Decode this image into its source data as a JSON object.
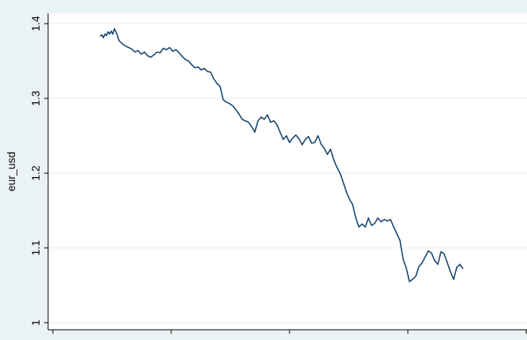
{
  "colors": {
    "background": "#eaf2f3",
    "plot_region": "#ffffff",
    "gridline": "#eaf2f3",
    "series_line": "#1a476f",
    "axis": "#000000"
  },
  "chart_data": {
    "type": "line",
    "title": "",
    "xlabel": "",
    "ylabel": "eur_usd",
    "ylim": [
      1.0,
      1.4
    ],
    "yticks": [
      1,
      1.1,
      1.2,
      1.3,
      1.4
    ],
    "ytick_labels": [
      "1",
      "1.1",
      "1.2",
      "1.3",
      "1.4"
    ],
    "xlim": [
      0,
      600
    ],
    "xticks": [
      0,
      150,
      300,
      450,
      600
    ],
    "xtick_labels": [
      "",
      "",
      "",
      "",
      ""
    ],
    "grid": true,
    "legend": "none",
    "series": [
      {
        "x": [
          60,
          62,
          64,
          66,
          68,
          70,
          72,
          74,
          76,
          78,
          80,
          84,
          88,
          92,
          96,
          100,
          104,
          108,
          112,
          116,
          120,
          124,
          128,
          132,
          136,
          140,
          144,
          148,
          152,
          156,
          160,
          164,
          168,
          172,
          176,
          180,
          184,
          188,
          192,
          196,
          200,
          204,
          208,
          212,
          216,
          220,
          224,
          228,
          232,
          236,
          240,
          244,
          248,
          252,
          256,
          260,
          264,
          268,
          272,
          276,
          280,
          284,
          288,
          292,
          296,
          300,
          304,
          308,
          312,
          316,
          320,
          324,
          328,
          332,
          336,
          340,
          344,
          348,
          352,
          356,
          360,
          364,
          368,
          372,
          376,
          380,
          384,
          388,
          392,
          396,
          400,
          404,
          408,
          412,
          416,
          420,
          424,
          428,
          432,
          436,
          440,
          444,
          448,
          452,
          456,
          460,
          464,
          468,
          472,
          476,
          480,
          484,
          488,
          492,
          496,
          500,
          504,
          508,
          512,
          516,
          520
        ],
        "y": [
          1.383,
          1.385,
          1.381,
          1.386,
          1.384,
          1.389,
          1.386,
          1.39,
          1.386,
          1.393,
          1.389,
          1.377,
          1.373,
          1.37,
          1.368,
          1.366,
          1.362,
          1.364,
          1.359,
          1.362,
          1.357,
          1.355,
          1.358,
          1.362,
          1.361,
          1.367,
          1.365,
          1.368,
          1.363,
          1.365,
          1.361,
          1.356,
          1.352,
          1.35,
          1.345,
          1.341,
          1.342,
          1.338,
          1.34,
          1.336,
          1.335,
          1.326,
          1.32,
          1.316,
          1.298,
          1.295,
          1.293,
          1.29,
          1.285,
          1.279,
          1.272,
          1.27,
          1.268,
          1.262,
          1.255,
          1.27,
          1.275,
          1.272,
          1.278,
          1.268,
          1.27,
          1.265,
          1.255,
          1.245,
          1.25,
          1.241,
          1.247,
          1.251,
          1.246,
          1.238,
          1.245,
          1.249,
          1.24,
          1.241,
          1.25,
          1.239,
          1.233,
          1.225,
          1.232,
          1.218,
          1.208,
          1.2,
          1.188,
          1.175,
          1.165,
          1.158,
          1.14,
          1.128,
          1.132,
          1.128,
          1.14,
          1.13,
          1.133,
          1.14,
          1.135,
          1.138,
          1.136,
          1.138,
          1.128,
          1.119,
          1.11,
          1.085,
          1.073,
          1.055,
          1.058,
          1.062,
          1.075,
          1.08,
          1.088,
          1.096,
          1.093,
          1.083,
          1.078,
          1.095,
          1.092,
          1.08,
          1.068,
          1.058,
          1.074,
          1.078,
          1.072
        ]
      }
    ]
  }
}
